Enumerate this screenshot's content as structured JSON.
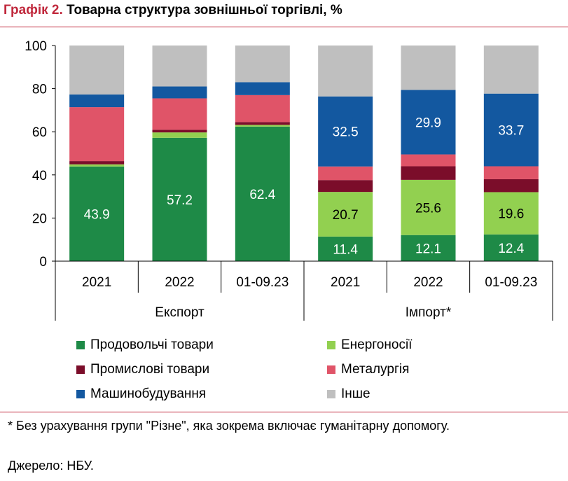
{
  "title": {
    "prefix": "Графік 2.",
    "text": " Товарна структура зовнішньої торгівлі, %"
  },
  "chart_data": {
    "type": "bar",
    "stacked": true,
    "title": "Товарна структура зовнішньої торгівлі, %",
    "ylim": [
      0,
      100
    ],
    "yticks": [
      0,
      20,
      40,
      60,
      80,
      100
    ],
    "groups": [
      {
        "label": "Експорт",
        "categories": [
          "2021",
          "2022",
          "01-09.23"
        ]
      },
      {
        "label": "Імпорт*",
        "categories": [
          "2021",
          "2022",
          "01-09.23"
        ]
      }
    ],
    "categories": [
      "2021",
      "2022",
      "01-09.23",
      "2021",
      "2022",
      "01-09.23"
    ],
    "series": [
      {
        "name": "Продовольчі товари",
        "color": "#1e8a47",
        "values": [
          43.9,
          57.2,
          62.4,
          11.4,
          12.1,
          12.4
        ]
      },
      {
        "name": "Енергоносії",
        "color": "#92d050",
        "values": [
          1.0,
          2.5,
          0.8,
          20.7,
          25.6,
          19.6
        ]
      },
      {
        "name": "Промислові товари",
        "color": "#7b0d2a",
        "values": [
          1.5,
          1.2,
          1.3,
          5.5,
          6.3,
          6.0
        ]
      },
      {
        "name": "Металургія",
        "color": "#e05468",
        "values": [
          25.0,
          14.6,
          12.5,
          6.3,
          5.5,
          6.0
        ]
      },
      {
        "name": "Машинобудування",
        "color": "#1358a0",
        "values": [
          5.9,
          5.5,
          6.0,
          32.5,
          29.9,
          33.7
        ]
      },
      {
        "name": "Інше",
        "color": "#bfbfbf",
        "values": [
          22.7,
          19.0,
          17.0,
          23.6,
          20.6,
          22.3
        ]
      }
    ],
    "data_labels": [
      {
        "series": 0,
        "category": 0,
        "text": "43.9",
        "color": "#ffffff"
      },
      {
        "series": 0,
        "category": 1,
        "text": "57.2",
        "color": "#ffffff"
      },
      {
        "series": 0,
        "category": 2,
        "text": "62.4",
        "color": "#ffffff"
      },
      {
        "series": 0,
        "category": 3,
        "text": "11.4",
        "color": "#ffffff"
      },
      {
        "series": 0,
        "category": 4,
        "text": "12.1",
        "color": "#ffffff"
      },
      {
        "series": 0,
        "category": 5,
        "text": "12.4",
        "color": "#ffffff"
      },
      {
        "series": 1,
        "category": 3,
        "text": "20.7",
        "color": "#000000"
      },
      {
        "series": 1,
        "category": 4,
        "text": "25.6",
        "color": "#000000"
      },
      {
        "series": 1,
        "category": 5,
        "text": "19.6",
        "color": "#000000"
      },
      {
        "series": 4,
        "category": 3,
        "text": "32.5",
        "color": "#ffffff"
      },
      {
        "series": 4,
        "category": 4,
        "text": "29.9",
        "color": "#ffffff"
      },
      {
        "series": 4,
        "category": 5,
        "text": "33.7",
        "color": "#ffffff"
      }
    ],
    "legend_position": "bottom",
    "grid": false
  },
  "footnote": "* Без урахування групи \"Різне\", яка зокрема включає гуманітарну допомогу.",
  "source": "Джерело: НБУ."
}
